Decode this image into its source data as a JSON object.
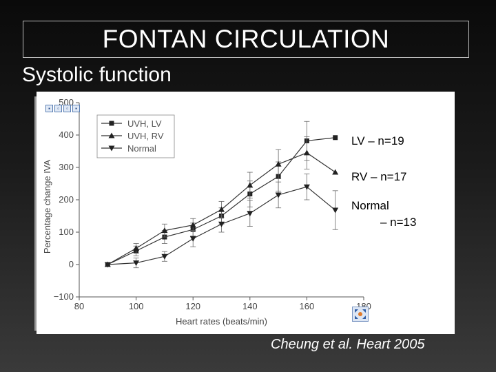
{
  "slide": {
    "title": "FONTAN CIRCULATION",
    "subtitle": "Systolic function",
    "citation": "Cheung et al. Heart 2005"
  },
  "annotations": {
    "lv": "LV – n=19",
    "rv": "RV – n=17",
    "normal_line1": "Normal",
    "normal_line2": "– n=13"
  },
  "chart_data": {
    "type": "line",
    "xlabel": "Heart rates (beats/min)",
    "ylabel": "Percentage change IVA",
    "xlim": [
      80,
      180
    ],
    "ylim": [
      -100,
      500
    ],
    "x_ticks": [
      80,
      100,
      120,
      140,
      160,
      180
    ],
    "y_ticks": [
      -100,
      0,
      100,
      200,
      300,
      400,
      500
    ],
    "legend_position": "top-left",
    "series": [
      {
        "name": "UVH, LV",
        "marker": "square",
        "x": [
          90,
          100,
          110,
          120,
          130,
          140,
          150,
          160,
          170
        ],
        "y": [
          0,
          42,
          85,
          108,
          150,
          218,
          272,
          382,
          392
        ],
        "err": [
          0,
          15,
          20,
          20,
          25,
          40,
          45,
          60,
          0
        ]
      },
      {
        "name": "UVH, RV",
        "marker": "triangle-up",
        "x": [
          90,
          100,
          110,
          120,
          130,
          140,
          150,
          160,
          170
        ],
        "y": [
          0,
          50,
          105,
          122,
          170,
          245,
          310,
          345,
          285
        ],
        "err": [
          0,
          15,
          20,
          20,
          25,
          40,
          45,
          50,
          0
        ]
      },
      {
        "name": "Normal",
        "marker": "triangle-down",
        "x": [
          90,
          100,
          110,
          120,
          130,
          140,
          150,
          160,
          170
        ],
        "y": [
          0,
          5,
          25,
          80,
          125,
          158,
          215,
          240,
          168
        ],
        "err": [
          0,
          15,
          15,
          25,
          25,
          40,
          40,
          40,
          60
        ]
      }
    ]
  },
  "icons": {
    "toolbar": [
      "save-icon",
      "print-icon",
      "copy-icon",
      "folder-icon"
    ],
    "expand": "expand-icon"
  }
}
